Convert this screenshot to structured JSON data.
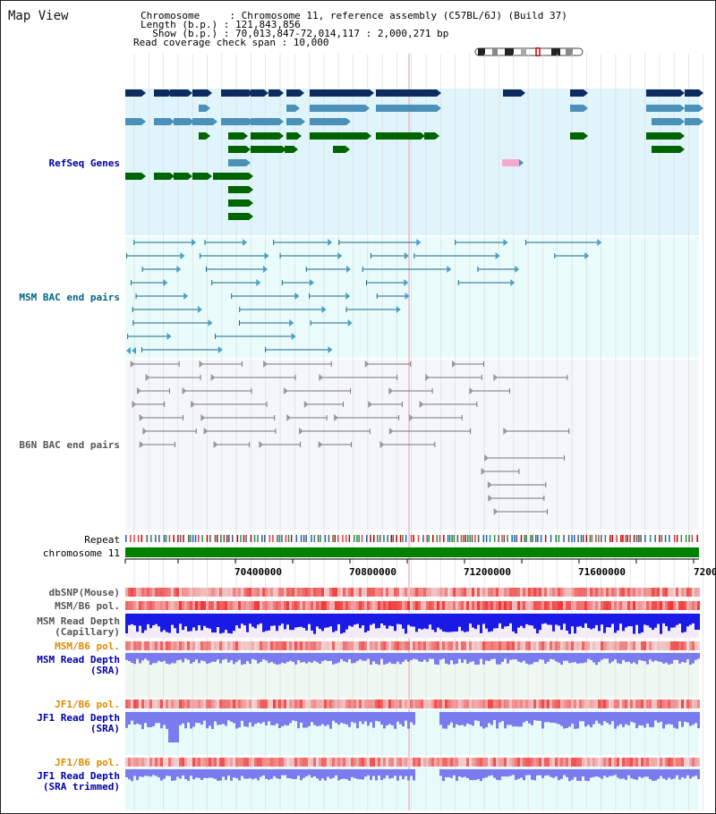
{
  "header": {
    "title": "Map View",
    "chromosome_line": "Chromosome     : Chromosome 11, reference assembly (C57BL/6J) (Build 37)",
    "length_line": "Length (b.p.) : 121,843,856",
    "show_line": "  Show (b.p.) : 70,013,847-72,014,117 : 2,000,271 bp",
    "coverage_line": "Read coverage check span : 10,000"
  },
  "tracks": {
    "refseq_label": "RefSeq Genes",
    "msm_bac_label": "MSM BAC end pairs",
    "b6n_bac_label": "B6N BAC end pairs",
    "repeat_label": "Repeat",
    "chromosome_label": "chromosome 11",
    "dbsnp_label": "dbSNP(Mouse)",
    "msm_b6_pol_label": "MSM/B6 pol.",
    "msm_depth_cap_label_1": "MSM Read Depth",
    "msm_depth_cap_label_2": "(Capillary)",
    "msm_b6_pol2_label": "MSM/B6 pol.",
    "msm_depth_sra_label_1": "MSM Read Depth",
    "msm_depth_sra_label_2": "(SRA)",
    "jf1_pol_label": "JF1/B6 pol.",
    "jf1_depth_label_1": "JF1 Read Depth",
    "jf1_depth_label_2": "(SRA)",
    "jf1_pol2_label": "JF1/B6 pol.",
    "jf1_trim_label_1": "JF1 Read Depth",
    "jf1_trim_label_2": "(SRA trimmed)"
  },
  "axis": {
    "ticks": [
      "70400000",
      "70800000",
      "71200000",
      "71600000",
      "7200"
    ]
  },
  "colors": {
    "refseq_bg": "#e0f4fb",
    "gene_dark": "#0d2b5e",
    "gene_mid": "#4a90b8",
    "gene_green": "#006400",
    "gene_pink": "#f7a8d0",
    "msm_bac_bg": "#e9fbfb",
    "msm_bac_line": "#1a6a8a",
    "b6n_bac_bg": "#f4f6fb",
    "b6n_bac_line": "#777777",
    "chromosome": "#008000",
    "depth_blue": "#1a1ae6",
    "depth_light": "#7b7bf0",
    "label_blue": "#0000aa",
    "label_teal": "#006680",
    "label_grey": "#555555",
    "label_orange": "#e08a00"
  }
}
